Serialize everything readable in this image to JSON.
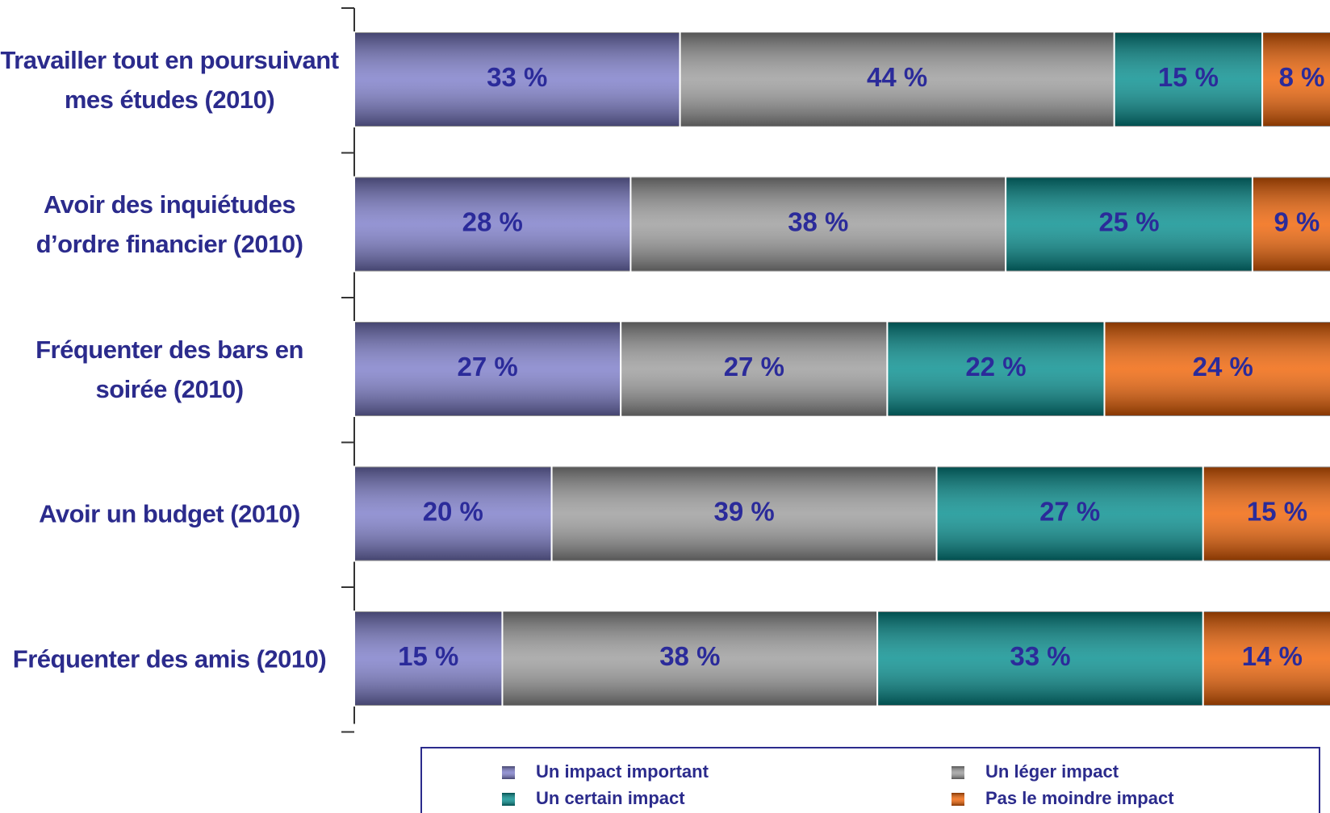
{
  "chart_data": {
    "type": "stacked_bar",
    "orientation": "horizontal",
    "categories": [
      "Travailler tout en poursuivant mes études (2010)",
      "Avoir des inquiétudes d’ordre financier (2010)",
      "Fréquenter des bars en soirée (2010)",
      "Avoir un budget (2010)",
      "Fréquenter des amis (2010)"
    ],
    "xlim": [
      0,
      100
    ],
    "series": [
      {
        "name": "Un impact important",
        "color": "#7a7ac8",
        "values": [
          33,
          28,
          27,
          20,
          15
        ],
        "value_labels": [
          "33 %",
          "28 %",
          "27 %",
          "20 %",
          "15 %"
        ]
      },
      {
        "name": "Un léger impact",
        "color": "#9a9a9a",
        "values": [
          44,
          38,
          27,
          39,
          38
        ],
        "value_labels": [
          "44 %",
          "38 %",
          "27 %",
          "39 %",
          "38 %"
        ]
      },
      {
        "name": "Un  certain impact",
        "color": "#008c8c",
        "values": [
          15,
          25,
          22,
          27,
          33
        ],
        "value_labels": [
          "15 %",
          "25 %",
          "22 %",
          "27 %",
          "33 %"
        ]
      },
      {
        "name": "Pas le moindre impact",
        "color": "#f06000",
        "values": [
          8,
          9,
          24,
          15,
          14
        ],
        "value_labels": [
          "8 %",
          "9 %",
          "24 %",
          "15 %",
          "14 %"
        ]
      }
    ]
  }
}
